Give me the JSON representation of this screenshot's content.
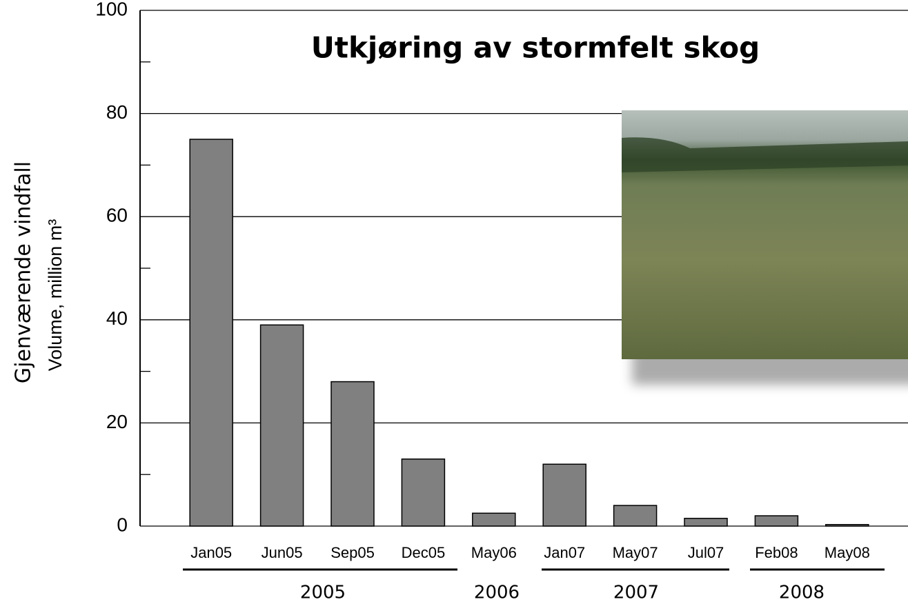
{
  "chart_data": {
    "type": "bar",
    "title": "Utkjøring av stormfelt skog",
    "y_label": "Gjenværende vindfall",
    "y_sublabel": "Volume, million m³",
    "categories": [
      "Jan05",
      "Jun05",
      "Sep05",
      "Dec05",
      "May06",
      "Jan07",
      "May07",
      "Jul07",
      "Feb08",
      "May08"
    ],
    "values": [
      75,
      39,
      28,
      13,
      2.5,
      12,
      4,
      1.5,
      2,
      0.3
    ],
    "color": "#808080",
    "year_labels": [
      "2005",
      "2006",
      "2007",
      "2008"
    ],
    "ylim": [
      0,
      100
    ],
    "yticks": [
      0,
      20,
      40,
      60,
      80,
      100
    ],
    "grid": true
  }
}
